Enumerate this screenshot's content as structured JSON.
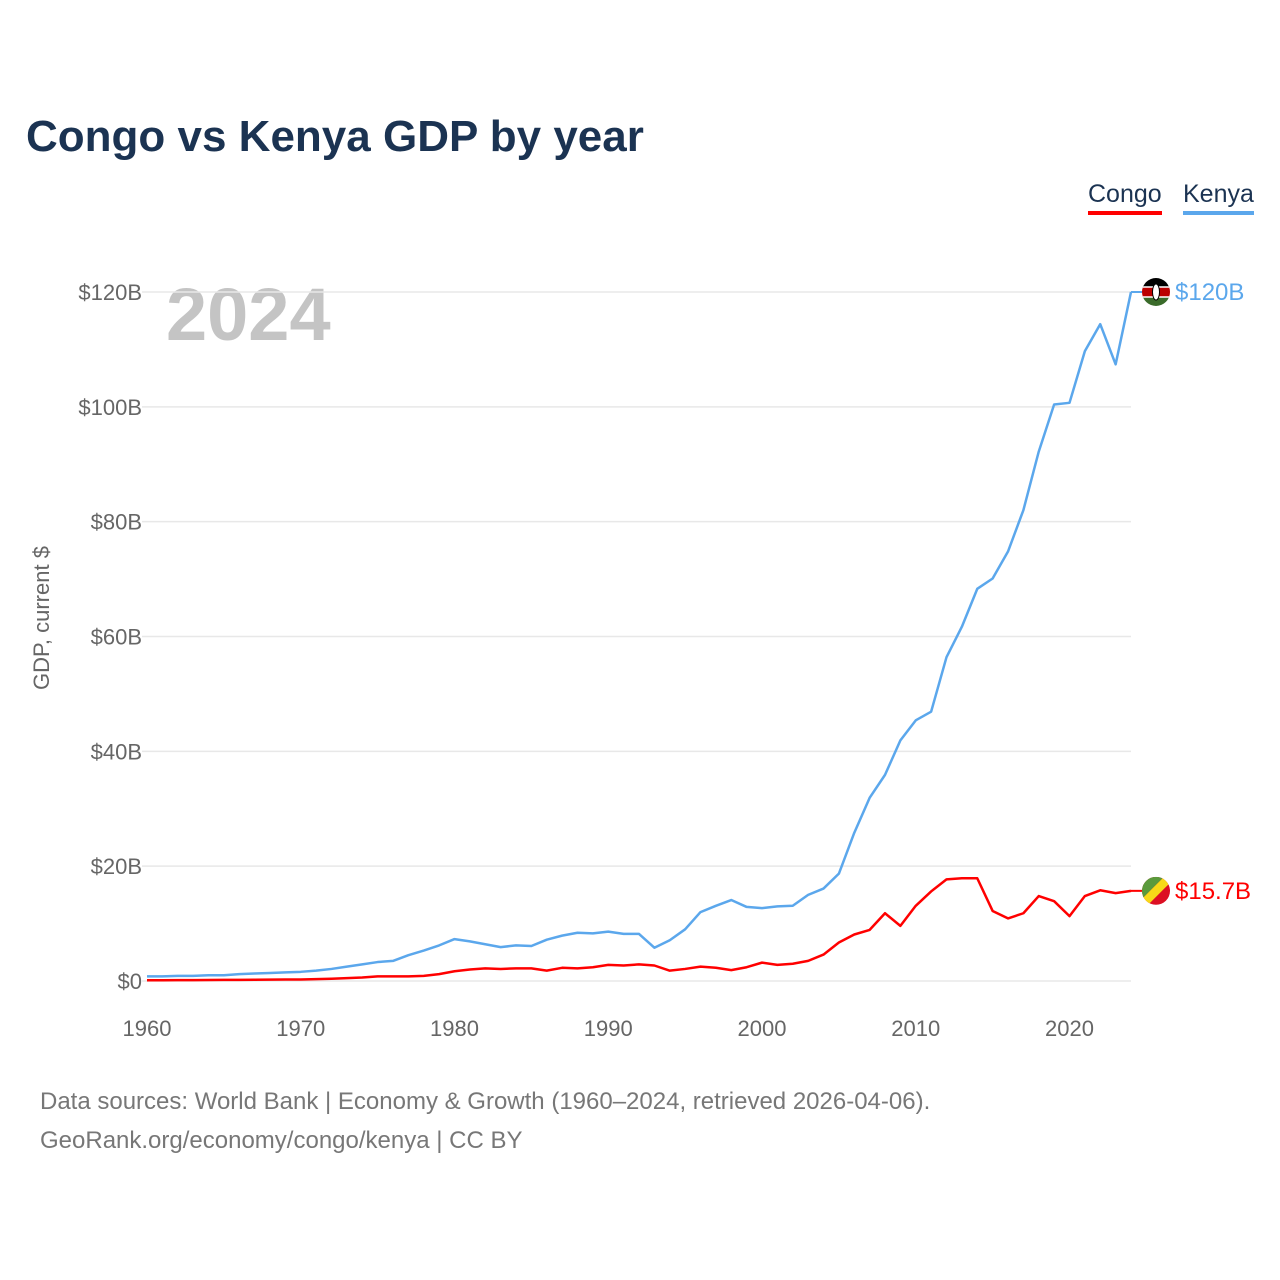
{
  "title": "Congo vs Kenya GDP by year",
  "year_label": "2024",
  "footer": {
    "line1": "Data sources: World Bank | Economy & Growth (1960–2024, retrieved 2026-04-06).",
    "line2": "GeoRank.org/economy/congo/kenya | CC BY"
  },
  "chart_data": {
    "type": "line",
    "title": "Congo vs Kenya GDP by year",
    "xlabel": "",
    "ylabel": "GDP, current $",
    "xlim": [
      1960,
      2024
    ],
    "ylim": [
      0,
      120
    ],
    "grid": true,
    "legend": "top-right",
    "x_ticks": [
      1960,
      1970,
      1980,
      1990,
      2000,
      2010,
      2020
    ],
    "y_ticks": [
      {
        "v": 0,
        "label": "$0"
      },
      {
        "v": 20,
        "label": "$20B"
      },
      {
        "v": 40,
        "label": "$40B"
      },
      {
        "v": 60,
        "label": "$60B"
      },
      {
        "v": 80,
        "label": "$80B"
      },
      {
        "v": 100,
        "label": "$100B"
      },
      {
        "v": 120,
        "label": "$120B"
      }
    ],
    "x_start": 1960,
    "series": [
      {
        "name": "Congo",
        "color": "#ff0000",
        "end_label": "$15.7B",
        "flag": "congo-flag",
        "values": [
          0.13,
          0.14,
          0.15,
          0.16,
          0.17,
          0.19,
          0.2,
          0.22,
          0.24,
          0.26,
          0.27,
          0.32,
          0.4,
          0.5,
          0.6,
          0.8,
          0.8,
          0.8,
          0.9,
          1.2,
          1.7,
          2.0,
          2.2,
          2.1,
          2.2,
          2.2,
          1.8,
          2.3,
          2.2,
          2.4,
          2.8,
          2.7,
          2.9,
          2.7,
          1.8,
          2.1,
          2.5,
          2.3,
          1.9,
          2.4,
          3.2,
          2.8,
          3.0,
          3.5,
          4.6,
          6.7,
          8.1,
          8.9,
          11.8,
          9.6,
          13.1,
          15.6,
          17.7,
          17.9,
          17.9,
          12.2,
          10.9,
          11.8,
          14.8,
          13.9,
          11.3,
          14.8,
          15.8,
          15.3,
          15.7
        ]
      },
      {
        "name": "Kenya",
        "color": "#5ba7ec",
        "end_label": "$120B",
        "flag": "kenya-flag",
        "values": [
          0.8,
          0.8,
          0.9,
          0.9,
          1.0,
          1.0,
          1.2,
          1.3,
          1.4,
          1.5,
          1.6,
          1.8,
          2.1,
          2.5,
          2.9,
          3.3,
          3.5,
          4.5,
          5.3,
          6.2,
          7.3,
          6.9,
          6.4,
          5.9,
          6.2,
          6.1,
          7.2,
          7.9,
          8.4,
          8.3,
          8.6,
          8.2,
          8.2,
          5.8,
          7.1,
          9.0,
          12.0,
          13.1,
          14.1,
          12.9,
          12.7,
          13.0,
          13.1,
          15.0,
          16.1,
          18.7,
          25.8,
          31.9,
          35.9,
          41.9,
          45.4,
          46.9,
          56.4,
          61.7,
          68.3,
          70.1,
          74.8,
          82.0,
          92.2,
          100.4,
          100.7,
          109.7,
          114.4,
          107.4,
          120.0
        ]
      }
    ]
  }
}
